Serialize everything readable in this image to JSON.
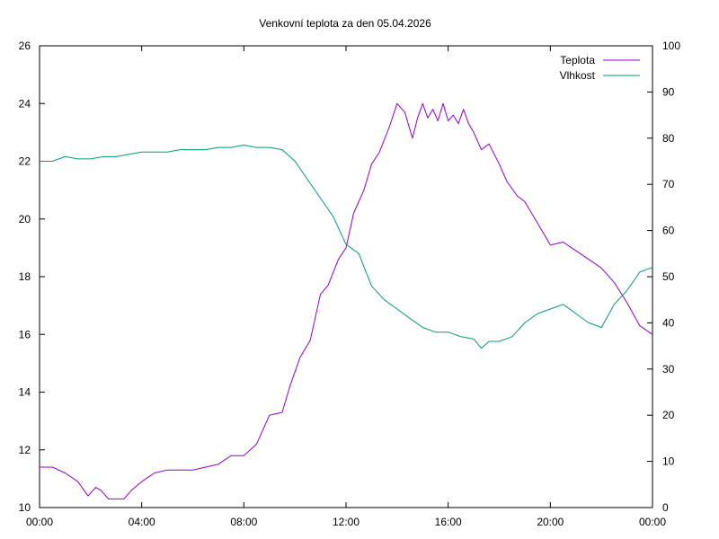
{
  "chart_data": {
    "type": "line",
    "title": "Venkovní teplota za den 05.04.2026",
    "x_ticks": [
      "00:00",
      "04:00",
      "08:00",
      "12:00",
      "16:00",
      "20:00",
      "00:00"
    ],
    "xlim": [
      0,
      24
    ],
    "y_left": {
      "ticks": [
        "10",
        "12",
        "14",
        "16",
        "18",
        "20",
        "22",
        "24",
        "26"
      ],
      "lim": [
        10,
        26
      ]
    },
    "y_right": {
      "ticks": [
        "0",
        "10",
        "20",
        "30",
        "40",
        "50",
        "60",
        "70",
        "80",
        "90",
        "100"
      ],
      "lim": [
        0,
        100
      ]
    },
    "legend_position": "top-right",
    "grid": false,
    "series": [
      {
        "name": "Teplota",
        "axis": "left",
        "color": "#9400d3",
        "x": [
          0,
          0.5,
          1,
          1.5,
          1.9,
          2.2,
          2.4,
          2.7,
          3.0,
          3.3,
          3.6,
          4.0,
          4.5,
          5.0,
          5.5,
          6.0,
          6.5,
          7.0,
          7.5,
          8.0,
          8.5,
          9.0,
          9.5,
          9.8,
          10.2,
          10.6,
          11.0,
          11.3,
          11.7,
          12.0,
          12.3,
          12.7,
          13.0,
          13.3,
          13.7,
          14.0,
          14.3,
          14.6,
          14.8,
          15.0,
          15.2,
          15.4,
          15.6,
          15.8,
          16.0,
          16.2,
          16.4,
          16.6,
          16.8,
          17.0,
          17.3,
          17.6,
          18.0,
          18.3,
          18.7,
          19.0,
          19.4,
          19.8,
          20.0,
          20.5,
          21.0,
          21.5,
          22.0,
          22.5,
          23.0,
          23.5,
          24.0
        ],
        "values": [
          11.4,
          11.4,
          11.2,
          10.9,
          10.4,
          10.7,
          10.6,
          10.3,
          10.3,
          10.3,
          10.6,
          10.9,
          11.2,
          11.3,
          11.3,
          11.3,
          11.4,
          11.5,
          11.8,
          11.8,
          12.2,
          13.2,
          13.3,
          14.2,
          15.2,
          15.8,
          17.4,
          17.7,
          18.6,
          19.0,
          20.2,
          21.0,
          21.9,
          22.3,
          23.2,
          24.0,
          23.7,
          22.8,
          23.5,
          24.0,
          23.5,
          23.8,
          23.4,
          24.0,
          23.4,
          23.6,
          23.3,
          23.8,
          23.3,
          23.0,
          22.4,
          22.6,
          21.9,
          21.3,
          20.8,
          20.6,
          20.0,
          19.4,
          19.1,
          19.2,
          18.9,
          18.6,
          18.3,
          17.8,
          17.1,
          16.3,
          16.0
        ]
      },
      {
        "name": "Vlhkost",
        "axis": "right",
        "color": "#009e73",
        "x": [
          0,
          0.5,
          1,
          1.5,
          2,
          2.5,
          3,
          3.5,
          4,
          4.5,
          5,
          5.5,
          6,
          6.5,
          7,
          7.5,
          8,
          8.5,
          9,
          9.5,
          10,
          10.5,
          11,
          11.5,
          12,
          12.5,
          13,
          13.5,
          14,
          14.5,
          15,
          15.5,
          16,
          16.5,
          17,
          17.3,
          17.6,
          18,
          18.5,
          19,
          19.5,
          20,
          20.5,
          21,
          21.5,
          22,
          22.5,
          23,
          23.5,
          24
        ],
        "values": [
          75,
          75,
          76,
          75.5,
          75.5,
          76,
          76,
          76.5,
          77,
          77,
          77,
          77.5,
          77.5,
          77.5,
          78,
          78,
          78.5,
          78,
          78,
          77.5,
          75,
          71,
          67,
          63,
          57,
          55,
          48,
          45,
          43,
          41,
          39,
          38,
          38,
          37,
          36.5,
          34.5,
          36,
          36,
          37,
          40,
          42,
          43,
          44,
          42,
          40,
          39,
          44,
          47,
          51,
          52
        ]
      }
    ]
  }
}
